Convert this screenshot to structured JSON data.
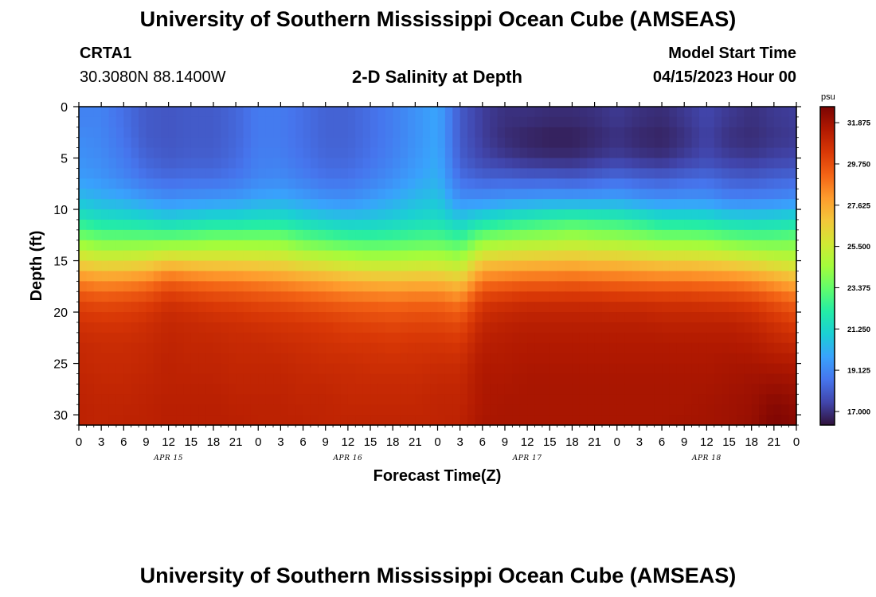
{
  "page": {
    "title_top": "University of Southern Mississippi Ocean Cube (AMSEAS)",
    "title_bottom": "University of Southern Mississippi Ocean Cube (AMSEAS)"
  },
  "header": {
    "station_id": "CRTA1",
    "station_coords": "30.3080N  88.1400W",
    "plot_title": "2-D Salinity at Depth",
    "model_start_label": "Model Start Time",
    "model_start_value": "04/15/2023 Hour 00"
  },
  "chart_data": {
    "type": "heatmap",
    "title": "2-D Salinity at Depth",
    "xlabel": "Forecast Time(Z)",
    "ylabel": "Depth (ft)",
    "x_range_hours": [
      0,
      96
    ],
    "x_tick_labels": [
      "0",
      "3",
      "6",
      "9",
      "12",
      "15",
      "18",
      "21",
      "0",
      "3",
      "6",
      "9",
      "12",
      "15",
      "18",
      "21",
      "0",
      "3",
      "6",
      "9",
      "12",
      "15",
      "18",
      "21",
      "0",
      "3",
      "6",
      "9",
      "12",
      "15",
      "18",
      "21",
      "0"
    ],
    "day_labels": [
      {
        "label": "APR 15",
        "hour": 12
      },
      {
        "label": "APR 16",
        "hour": 36
      },
      {
        "label": "APR 17",
        "hour": 60
      },
      {
        "label": "APR 18",
        "hour": 84
      }
    ],
    "y_range_ft": [
      0,
      31
    ],
    "y_reversed": true,
    "y_ticks": [
      0,
      5,
      10,
      15,
      20,
      25,
      30
    ],
    "colorbar": {
      "unit": "psu",
      "range": [
        16.3,
        32.7
      ],
      "tick_labels": [
        "31.875",
        "29.750",
        "27.625",
        "25.500",
        "23.375",
        "21.250",
        "19.125",
        "17.000"
      ],
      "tick_values": [
        31.875,
        29.75,
        27.625,
        25.5,
        23.375,
        21.25,
        19.125,
        17.0
      ],
      "colors": [
        "#30123b",
        "#4145ab",
        "#4675ed",
        "#39a2fc",
        "#1bcfd4",
        "#24eca6",
        "#61fc6c",
        "#a4fc3b",
        "#d1e834",
        "#f3c63a",
        "#fe9b2d",
        "#f36315",
        "#d93806",
        "#b11901",
        "#7a0403"
      ]
    },
    "grid": {
      "hours": [
        0,
        3,
        6,
        9,
        12,
        15,
        18,
        21,
        24,
        27,
        30,
        33,
        36,
        39,
        42,
        45,
        48,
        51,
        54,
        57,
        60,
        63,
        66,
        69,
        72,
        75,
        78,
        81,
        84,
        87,
        90,
        93,
        96
      ],
      "depths_ft": [
        1,
        3,
        5,
        7,
        9,
        11,
        13,
        15,
        17,
        19,
        21,
        23,
        25,
        27,
        29,
        31
      ],
      "salinity_psu": [
        [
          19.0,
          19.0,
          18.5,
          18.0,
          17.9,
          18.0,
          18.0,
          18.3,
          18.8,
          18.8,
          18.5,
          18.2,
          18.2,
          18.5,
          18.9,
          19.4,
          19.9,
          18.0,
          17.3,
          17.0,
          17.0,
          16.9,
          16.9,
          17.0,
          17.2,
          17.0,
          16.9,
          17.2,
          17.5,
          17.2,
          17.0,
          17.2,
          17.3
        ],
        [
          19.2,
          19.1,
          18.6,
          18.0,
          17.9,
          18.0,
          18.0,
          18.3,
          18.8,
          18.8,
          18.5,
          18.2,
          18.2,
          18.5,
          18.9,
          19.4,
          19.9,
          18.0,
          17.3,
          16.9,
          16.7,
          16.6,
          16.6,
          16.8,
          17.0,
          16.8,
          16.7,
          17.0,
          17.4,
          17.0,
          16.9,
          17.1,
          17.2
        ],
        [
          19.4,
          19.2,
          18.8,
          18.2,
          18.0,
          18.1,
          18.1,
          18.4,
          18.9,
          18.9,
          18.6,
          18.3,
          18.3,
          18.6,
          19.0,
          19.5,
          20.0,
          18.1,
          17.5,
          17.2,
          17.0,
          16.9,
          16.9,
          17.1,
          17.3,
          17.1,
          17.0,
          17.3,
          17.6,
          17.3,
          17.2,
          17.4,
          17.5
        ],
        [
          19.7,
          19.5,
          19.1,
          18.6,
          18.4,
          18.5,
          18.5,
          18.7,
          19.1,
          19.2,
          18.9,
          18.6,
          18.6,
          18.9,
          19.3,
          19.8,
          20.2,
          18.5,
          18.2,
          18.2,
          18.1,
          18.1,
          18.0,
          18.2,
          18.4,
          18.2,
          18.1,
          18.3,
          18.4,
          18.1,
          18.0,
          18.2,
          18.3
        ],
        [
          20.5,
          20.2,
          20.0,
          19.6,
          19.3,
          19.4,
          19.5,
          19.6,
          19.9,
          20.0,
          19.7,
          19.4,
          19.3,
          19.6,
          20.0,
          20.4,
          20.7,
          19.3,
          19.3,
          19.5,
          19.6,
          19.7,
          19.7,
          19.7,
          19.8,
          19.5,
          19.3,
          19.4,
          19.4,
          19.0,
          19.0,
          19.1,
          19.3
        ],
        [
          22.0,
          21.6,
          21.5,
          21.3,
          21.0,
          21.2,
          21.4,
          21.4,
          21.6,
          21.6,
          21.2,
          20.9,
          20.7,
          20.8,
          21.0,
          21.3,
          21.5,
          20.8,
          21.4,
          21.8,
          22.1,
          22.4,
          22.6,
          22.4,
          22.3,
          22.0,
          21.6,
          21.6,
          21.5,
          21.2,
          21.1,
          21.2,
          21.4
        ],
        [
          24.0,
          23.6,
          23.6,
          23.6,
          23.6,
          23.7,
          23.9,
          23.9,
          23.9,
          23.9,
          23.4,
          23.1,
          22.8,
          22.7,
          22.8,
          23.0,
          23.1,
          22.7,
          24.0,
          24.3,
          24.5,
          24.6,
          24.8,
          24.6,
          24.5,
          24.3,
          24.0,
          24.0,
          23.9,
          23.6,
          23.4,
          23.4,
          23.6
        ],
        [
          26.3,
          25.9,
          25.9,
          26.1,
          26.6,
          26.4,
          26.3,
          26.3,
          26.2,
          26.1,
          25.7,
          25.4,
          25.1,
          24.9,
          24.9,
          25.0,
          25.1,
          24.7,
          26.6,
          26.8,
          26.9,
          27.0,
          27.1,
          26.9,
          26.9,
          26.7,
          26.5,
          26.5,
          26.4,
          26.2,
          25.9,
          25.5,
          25.2
        ],
        [
          28.5,
          28.2,
          28.3,
          28.6,
          29.3,
          29.0,
          28.8,
          28.7,
          28.5,
          28.3,
          28.0,
          27.8,
          27.5,
          27.3,
          27.2,
          27.3,
          27.3,
          26.8,
          28.8,
          29.0,
          29.2,
          29.2,
          29.3,
          29.2,
          29.1,
          29.0,
          28.9,
          28.9,
          28.8,
          28.7,
          28.4,
          27.9,
          27.4
        ],
        [
          30.0,
          29.8,
          29.9,
          30.1,
          30.6,
          30.4,
          30.2,
          30.1,
          29.9,
          29.8,
          29.6,
          29.4,
          29.2,
          29.1,
          29.0,
          29.1,
          29.1,
          28.7,
          30.4,
          30.6,
          30.8,
          30.8,
          30.8,
          30.8,
          30.7,
          30.7,
          30.6,
          30.6,
          30.5,
          30.4,
          30.2,
          29.7,
          29.2
        ],
        [
          30.6,
          30.5,
          30.5,
          30.7,
          31.0,
          30.9,
          30.8,
          30.7,
          30.6,
          30.5,
          30.4,
          30.3,
          30.1,
          30.0,
          29.9,
          30.0,
          30.0,
          29.8,
          31.0,
          31.2,
          31.3,
          31.3,
          31.3,
          31.3,
          31.3,
          31.3,
          31.2,
          31.2,
          31.2,
          31.2,
          31.0,
          30.6,
          30.2
        ],
        [
          30.9,
          30.8,
          30.8,
          30.9,
          31.1,
          31.0,
          31.0,
          30.9,
          30.9,
          30.8,
          30.7,
          30.6,
          30.5,
          30.5,
          30.4,
          30.5,
          30.5,
          30.4,
          31.3,
          31.4,
          31.5,
          31.5,
          31.5,
          31.5,
          31.5,
          31.5,
          31.5,
          31.5,
          31.5,
          31.5,
          31.4,
          31.1,
          30.9
        ],
        [
          31.0,
          30.9,
          30.9,
          31.0,
          31.2,
          31.1,
          31.1,
          31.0,
          31.0,
          31.0,
          30.9,
          30.8,
          30.8,
          30.7,
          30.7,
          30.7,
          30.8,
          30.8,
          31.5,
          31.5,
          31.6,
          31.6,
          31.6,
          31.6,
          31.6,
          31.6,
          31.6,
          31.6,
          31.6,
          31.7,
          31.7,
          31.6,
          31.5
        ],
        [
          31.1,
          31.0,
          31.0,
          31.1,
          31.2,
          31.2,
          31.2,
          31.1,
          31.1,
          31.1,
          31.0,
          31.0,
          30.9,
          30.9,
          30.9,
          30.9,
          31.0,
          31.0,
          31.6,
          31.6,
          31.7,
          31.7,
          31.7,
          31.7,
          31.7,
          31.7,
          31.7,
          31.7,
          31.7,
          31.8,
          31.9,
          32.0,
          31.9
        ],
        [
          31.2,
          31.1,
          31.1,
          31.2,
          31.3,
          31.3,
          31.3,
          31.2,
          31.2,
          31.2,
          31.1,
          31.1,
          31.0,
          31.0,
          31.0,
          31.0,
          31.1,
          31.1,
          31.6,
          31.7,
          31.7,
          31.7,
          31.7,
          31.7,
          31.7,
          31.7,
          31.7,
          31.7,
          31.8,
          31.9,
          32.0,
          32.4,
          32.2
        ],
        [
          31.2,
          31.1,
          31.2,
          31.2,
          31.3,
          31.3,
          31.3,
          31.3,
          31.2,
          31.2,
          31.2,
          31.1,
          31.1,
          31.1,
          31.1,
          31.1,
          31.1,
          31.2,
          31.7,
          31.7,
          31.7,
          31.7,
          31.7,
          31.7,
          31.7,
          31.7,
          31.7,
          31.8,
          31.8,
          31.9,
          32.1,
          32.6,
          32.4
        ]
      ]
    }
  }
}
